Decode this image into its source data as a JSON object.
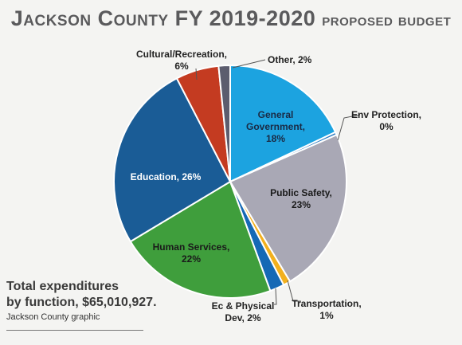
{
  "title": {
    "part1": "Jackson County FY 2019-2020",
    "part2": "proposed budget"
  },
  "caption": {
    "line1": "Total expenditures",
    "line2": "by function, $65,010,927.",
    "credit": "Jackson County graphic"
  },
  "chart_data": {
    "type": "pie",
    "title": "Jackson County FY 2019-2020 proposed budget",
    "subtitle": "Total expenditures by function, $65,010,927.",
    "slices": [
      {
        "name": "General Government",
        "label": "General Government, 18%",
        "value": 18,
        "color": "#1ca3e0"
      },
      {
        "name": "Env Protection",
        "label": "Env Protection, 0%",
        "value": 0.4,
        "color": "#2e7cc1"
      },
      {
        "name": "Public Safety",
        "label": "Public Safety, 23%",
        "value": 23,
        "color": "#a9a8b5"
      },
      {
        "name": "Transportation",
        "label": "Transportation, 1%",
        "value": 1,
        "color": "#f2b01e"
      },
      {
        "name": "Ec & Physical Dev",
        "label": "Ec & Physical Dev, 2%",
        "value": 2,
        "color": "#1569b5"
      },
      {
        "name": "Human Services",
        "label": "Human Services, 22%",
        "value": 22,
        "color": "#3f9e3c"
      },
      {
        "name": "Education",
        "label": "Education, 26%",
        "value": 26,
        "color": "#1a5c96"
      },
      {
        "name": "Cultural/Recreation",
        "label": "Cultural/Recreation, 6%",
        "value": 6,
        "color": "#c43b21"
      },
      {
        "name": "Other",
        "label": "Other, 2%",
        "value": 1.6,
        "color": "#5c5d6e"
      }
    ]
  }
}
